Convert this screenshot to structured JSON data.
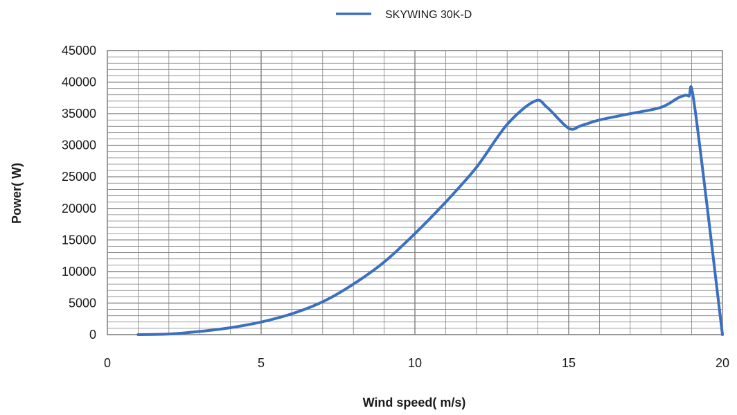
{
  "colors": {
    "series": "#3b6fc0",
    "minor_grid": "#7f7f7f",
    "major_grid": "#7f7f7f",
    "plot_border": "#8c8c8c",
    "text": "#1a1a1a"
  },
  "chart_data": {
    "type": "line",
    "title": "",
    "xlabel": "Wind speed( m/s)",
    "ylabel": "Power( W)",
    "xlim": [
      0,
      20
    ],
    "ylim": [
      0,
      45000
    ],
    "x_ticks": [
      0,
      5,
      10,
      15,
      20
    ],
    "y_ticks": [
      0,
      5000,
      10000,
      15000,
      20000,
      25000,
      30000,
      35000,
      40000,
      45000
    ],
    "x_minor_step": 1,
    "y_minor_step": 1000,
    "grid": true,
    "legend_position": "top-center",
    "series": [
      {
        "name": "SKYWING 30K-D",
        "x": [
          1,
          2,
          3,
          4,
          5,
          6,
          7,
          8,
          9,
          10,
          11,
          12,
          13,
          13.9,
          14.3,
          15,
          15.4,
          16,
          17,
          18,
          18.6,
          18.9,
          19.1,
          20
        ],
        "y": [
          0,
          100,
          500,
          1100,
          2000,
          3300,
          5200,
          8000,
          11500,
          16000,
          21000,
          26500,
          33300,
          37000,
          36000,
          32700,
          33100,
          34000,
          35000,
          36000,
          37600,
          37800,
          36000,
          0
        ]
      }
    ]
  }
}
